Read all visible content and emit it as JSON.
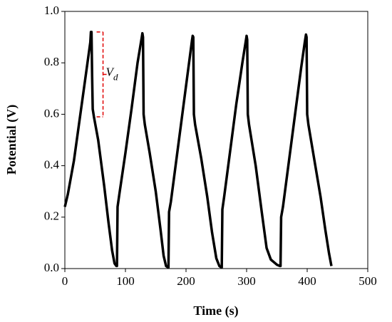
{
  "chart_data": {
    "type": "line",
    "x_label": "Time (s)",
    "y_label": "Potential (V)",
    "xlim": [
      0,
      500
    ],
    "xticks": [
      0,
      100,
      200,
      300,
      400,
      500
    ],
    "ylim": [
      0,
      1
    ],
    "yticks": [
      {
        "value": 0,
        "label": "0.0"
      },
      {
        "value": 0.2,
        "label": "0.2"
      },
      {
        "value": 0.4,
        "label": "0.4"
      },
      {
        "value": 0.6,
        "label": "0.6"
      },
      {
        "value": 0.8,
        "label": "0.8"
      },
      {
        "value": 1,
        "label": "1.0"
      }
    ],
    "grid": false,
    "x": [
      0,
      5,
      15,
      25,
      35,
      42,
      43,
      44,
      45,
      46,
      48,
      55,
      65,
      72,
      78,
      82,
      85,
      86,
      87,
      90,
      100,
      110,
      120,
      127,
      128,
      129,
      130,
      132,
      140,
      150,
      158,
      163,
      167,
      170,
      171,
      172,
      175,
      185,
      195,
      205,
      210,
      211,
      212,
      213,
      215,
      225,
      235,
      243,
      250,
      255,
      258,
      259,
      260,
      263,
      273,
      283,
      293,
      299,
      300,
      301,
      302,
      304,
      315,
      325,
      333,
      340,
      350,
      355,
      356,
      357,
      360,
      370,
      380,
      390,
      396,
      398,
      399,
      400,
      402,
      412,
      422,
      430,
      436,
      440
    ],
    "series": [
      {
        "color": "#000000",
        "values": [
          0.24,
          0.29,
          0.42,
          0.59,
          0.76,
          0.88,
          0.92,
          0.92,
          0.75,
          0.62,
          0.59,
          0.5,
          0.32,
          0.18,
          0.07,
          0.02,
          0.01,
          0.01,
          0.24,
          0.29,
          0.45,
          0.62,
          0.8,
          0.9,
          0.915,
          0.9,
          0.6,
          0.56,
          0.45,
          0.3,
          0.15,
          0.05,
          0.01,
          0.005,
          0.005,
          0.22,
          0.26,
          0.44,
          0.62,
          0.8,
          0.89,
          0.905,
          0.9,
          0.6,
          0.56,
          0.43,
          0.28,
          0.14,
          0.04,
          0.01,
          0.005,
          0.005,
          0.23,
          0.28,
          0.46,
          0.64,
          0.8,
          0.89,
          0.905,
          0.89,
          0.6,
          0.56,
          0.4,
          0.22,
          0.08,
          0.035,
          0.015,
          0.01,
          0.01,
          0.2,
          0.24,
          0.42,
          0.6,
          0.78,
          0.88,
          0.91,
          0.9,
          0.6,
          0.56,
          0.42,
          0.28,
          0.15,
          0.06,
          0.01
        ]
      }
    ],
    "annotation": {
      "symbol": "V",
      "subscript": "d",
      "color": "#e00000",
      "x": 63,
      "top": 0.92,
      "bottom": 0.59
    }
  }
}
